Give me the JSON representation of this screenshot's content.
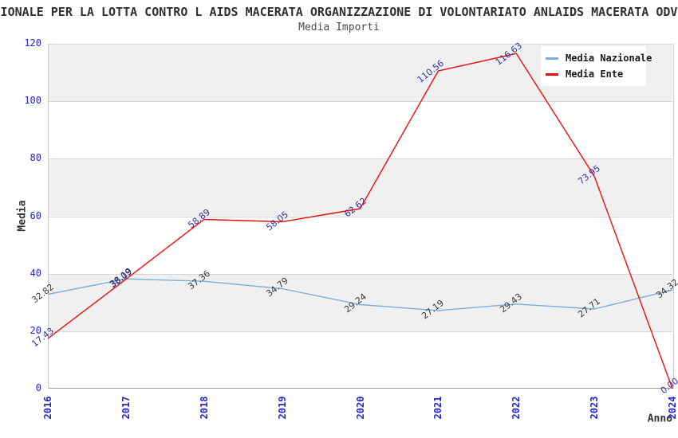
{
  "header": {
    "title": "IONALE PER LA LOTTA CONTRO L AIDS MACERATA ORGANIZZAZIONE DI VOLONTARIATO ANLAIDS MACERATA ODV",
    "subtitle": "Media Importi"
  },
  "chart_data": {
    "type": "line",
    "x": [
      "2016",
      "2017",
      "2018",
      "2019",
      "2020",
      "2021",
      "2022",
      "2023",
      "2024"
    ],
    "series": [
      {
        "name": "Media Nazionale",
        "color": "#7caedd",
        "label_color": "#3a3a3a",
        "values": [
          32.82,
          38.19,
          37.36,
          34.79,
          29.24,
          27.19,
          29.43,
          27.71,
          34.32
        ]
      },
      {
        "name": "Media Ente",
        "color": "#e8100c",
        "label_color": "#32329e",
        "values": [
          17.43,
          38.09,
          58.89,
          58.05,
          62.62,
          110.56,
          116.63,
          73.95,
          0.0
        ]
      }
    ],
    "xlabel": "Anno",
    "ylabel": "Media",
    "ylim": [
      0,
      120
    ],
    "ytick_step": 20,
    "grid": true,
    "legend_position": "top-right",
    "colors": {
      "tick_label": "#2424cc",
      "band": "#f0f0f0",
      "gridline": "#d6d6d6",
      "plot_border": "#c9c9c9",
      "axis_line": "#9a9a9a"
    }
  }
}
